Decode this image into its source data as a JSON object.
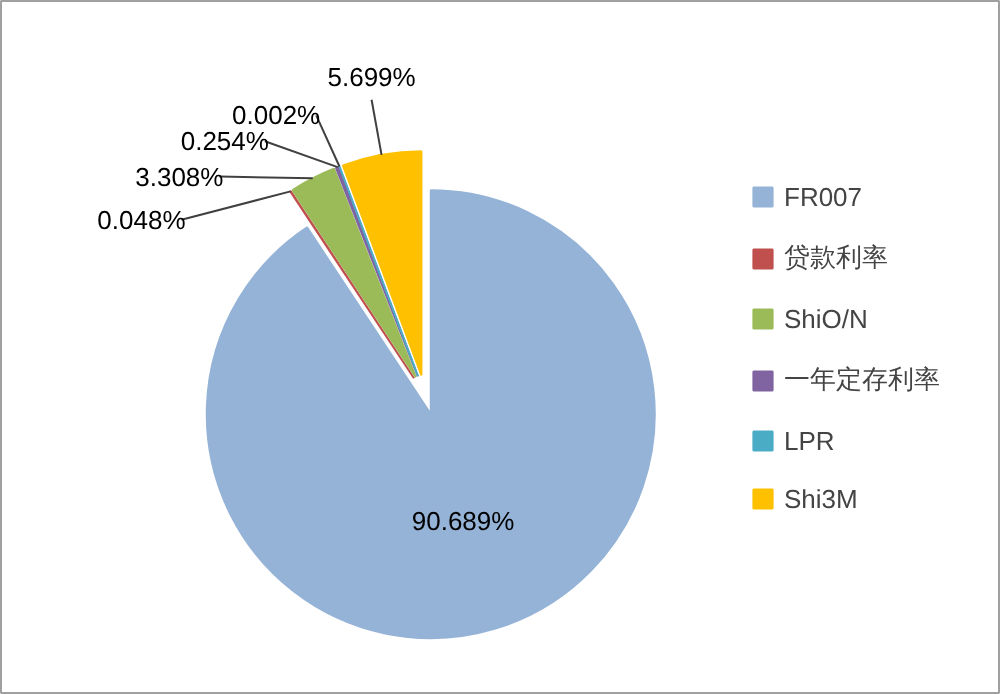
{
  "chart_data": {
    "type": "pie",
    "categories": [
      "FR007",
      "贷款利率",
      "ShiO/N",
      "一年定存利率",
      "LPR",
      "Shi3M"
    ],
    "values": [
      90.689,
      0.048,
      3.308,
      0.254,
      0.002,
      5.699
    ],
    "colors": [
      "#95b3d7",
      "#c0504d",
      "#9bbb59",
      "#8064a2",
      "#4bacc6",
      "#ffc000"
    ],
    "value_labels": [
      "90.689%",
      "0.048%",
      "3.308%",
      "0.254%",
      "0.002%",
      "5.699%"
    ],
    "legend": "right"
  }
}
